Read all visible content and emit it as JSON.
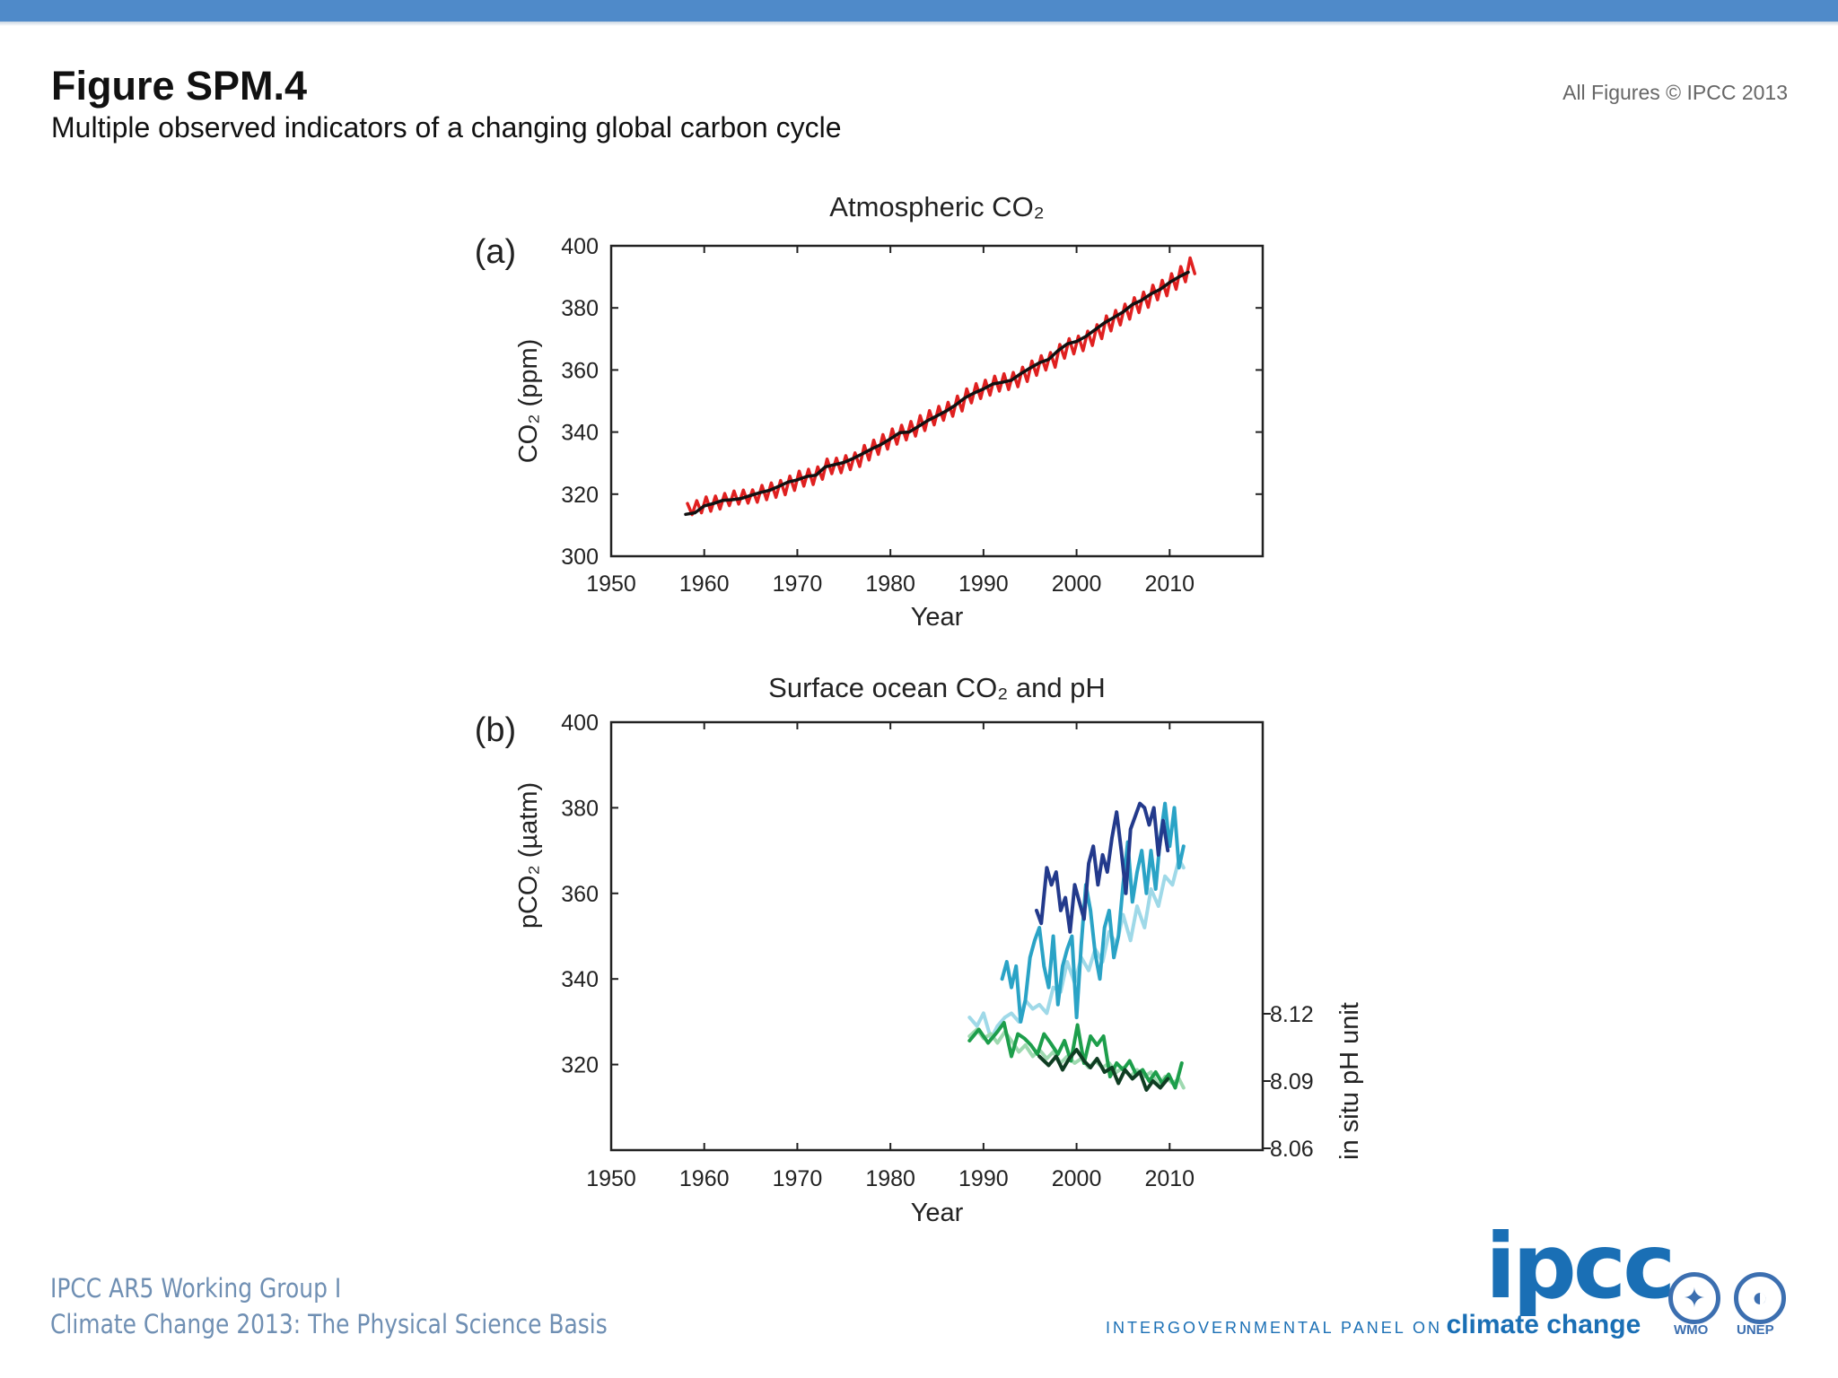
{
  "header": {
    "figure_title": "Figure SPM.4",
    "subtitle": "Multiple observed indicators of a changing global carbon cycle",
    "copyright": "All Figures © IPCC 2013"
  },
  "footer": {
    "line1": "IPCC AR5 Working Group I",
    "line2": "Climate Change 2013:  The Physical Science Basis",
    "ipcc_logo": "ipcc",
    "ipcc_tagline_small": "INTERGOVERNMENTAL PANEL ON",
    "ipcc_tagline_big": "climate change",
    "org1_label": "WMO",
    "org2_label": "UNEP",
    "org1_icon": "wmo-emblem-icon",
    "org2_icon": "unep-emblem-icon"
  },
  "chart_data": [
    {
      "panel": "(a)",
      "type": "line",
      "title": "Atmospheric CO₂",
      "xlabel": "Year",
      "ylabel": "CO₂ (ppm)",
      "xlim": [
        1950,
        2020
      ],
      "ylim": [
        300,
        400
      ],
      "xticks": [
        1950,
        1960,
        1970,
        1980,
        1990,
        2000,
        2010
      ],
      "yticks": [
        300,
        320,
        340,
        360,
        380,
        400
      ],
      "series": [
        {
          "color": "#e02020",
          "x": [
            1958.2,
            1958.7,
            1959.2,
            1959.7,
            1960.2,
            1960.7,
            1961.2,
            1961.7,
            1962.2,
            1962.7,
            1963.2,
            1963.7,
            1964.2,
            1964.7,
            1965.2,
            1965.7,
            1966.2,
            1966.7,
            1967.2,
            1967.7,
            1968.2,
            1968.7,
            1969.2,
            1969.7,
            1970.2,
            1970.7,
            1971.2,
            1971.7,
            1972.2,
            1972.7,
            1973.2,
            1973.7,
            1974.2,
            1974.7,
            1975.2,
            1975.7,
            1976.2,
            1976.7,
            1977.2,
            1977.7,
            1978.2,
            1978.7,
            1979.2,
            1979.7,
            1980.2,
            1980.7,
            1981.2,
            1981.7,
            1982.2,
            1982.7,
            1983.2,
            1983.7,
            1984.2,
            1984.7,
            1985.2,
            1985.7,
            1986.2,
            1986.7,
            1987.2,
            1987.7,
            1988.2,
            1988.7,
            1989.2,
            1989.7,
            1990.2,
            1990.7,
            1991.2,
            1991.7,
            1992.2,
            1992.7,
            1993.2,
            1993.7,
            1994.2,
            1994.7,
            1995.2,
            1995.7,
            1996.2,
            1996.7,
            1997.2,
            1997.7,
            1998.2,
            1998.7,
            1999.2,
            1999.7,
            2000.2,
            2000.7,
            2001.2,
            2001.7,
            2002.2,
            2002.7,
            2003.2,
            2003.7,
            2004.2,
            2004.7,
            2005.2,
            2005.7,
            2006.2,
            2006.7,
            2007.2,
            2007.7,
            2008.2,
            2008.7,
            2009.2,
            2009.7,
            2010.2,
            2010.7,
            2011.2,
            2011.7,
            2012.2,
            2012.7
          ],
          "y": [
            317.0,
            313.4,
            317.9,
            314.0,
            319.1,
            314.5,
            319.4,
            315.2,
            320.2,
            316.3,
            321.0,
            316.8,
            321.3,
            317.1,
            321.4,
            317.4,
            322.8,
            318.2,
            323.6,
            319.0,
            324.4,
            319.8,
            325.8,
            321.2,
            327.4,
            322.6,
            328.0,
            323.1,
            328.8,
            324.8,
            331.3,
            326.6,
            331.6,
            326.9,
            332.4,
            327.9,
            333.3,
            328.9,
            335.7,
            331.0,
            337.4,
            332.8,
            339.2,
            334.5,
            341.0,
            336.1,
            342.2,
            337.5,
            343.4,
            338.7,
            345.3,
            340.5,
            346.9,
            342.3,
            348.3,
            343.8,
            349.6,
            345.1,
            351.6,
            346.8,
            353.9,
            349.4,
            355.6,
            350.8,
            356.7,
            351.9,
            358.0,
            353.2,
            358.8,
            353.7,
            359.2,
            354.6,
            360.9,
            356.3,
            362.9,
            358.3,
            364.6,
            360.0,
            365.6,
            360.9,
            368.2,
            363.8,
            370.1,
            365.2,
            370.9,
            366.2,
            372.5,
            367.9,
            374.6,
            370.1,
            377.4,
            372.6,
            379.2,
            374.5,
            381.2,
            376.4,
            383.3,
            378.5,
            385.1,
            380.2,
            387.3,
            382.6,
            388.9,
            383.9,
            391.0,
            386.0,
            393.3,
            388.4,
            396.1,
            391.0
          ]
        },
        {
          "color": "#111111",
          "x": [
            1958,
            1959,
            1960,
            1961,
            1962,
            1963,
            1964,
            1965,
            1966,
            1967,
            1968,
            1969,
            1970,
            1971,
            1972,
            1973,
            1974,
            1975,
            1976,
            1977,
            1978,
            1979,
            1980,
            1981,
            1982,
            1983,
            1984,
            1985,
            1986,
            1987,
            1988,
            1989,
            1990,
            1991,
            1992,
            1993,
            1994,
            1995,
            1996,
            1997,
            1998,
            1999,
            2000,
            2001,
            2002,
            2003,
            2004,
            2005,
            2006,
            2007,
            2008,
            2009,
            2010,
            2011,
            2012
          ],
          "y": [
            313.5,
            314.0,
            316.2,
            317.0,
            318.0,
            318.2,
            318.6,
            319.6,
            320.5,
            321.2,
            322.5,
            323.9,
            324.6,
            325.7,
            326.1,
            328.8,
            329.5,
            330.2,
            331.5,
            333.0,
            334.6,
            336.0,
            337.8,
            339.8,
            340.0,
            341.8,
            343.7,
            345.2,
            346.8,
            348.7,
            351.0,
            352.6,
            353.9,
            355.5,
            356.0,
            356.7,
            358.8,
            360.6,
            362.3,
            363.4,
            366.2,
            368.4,
            369.2,
            370.8,
            373.0,
            375.2,
            376.9,
            378.7,
            381.1,
            382.5,
            384.5,
            386.0,
            388.2,
            390.0,
            391.5
          ]
        }
      ]
    },
    {
      "panel": "(b)",
      "type": "line",
      "title": "Surface ocean CO₂ and pH",
      "xlabel": "Year",
      "ylabel": "pCO₂ (µatm)",
      "y2label": "in situ pH unit",
      "xlim": [
        1950,
        2020
      ],
      "ylim": [
        300,
        400
      ],
      "xticks": [
        1950,
        1960,
        1970,
        1980,
        1990,
        2000,
        2010
      ],
      "yticks": [
        320,
        340,
        360,
        380,
        400
      ],
      "y2lim": [
        8.06,
        8.12
      ],
      "y2ticks": [
        8.06,
        8.09,
        8.12
      ],
      "series": [
        {
          "axis": "left",
          "color": "#9fd9e8",
          "x": [
            1988.5,
            1989.3,
            1990.0,
            1990.8,
            1991.5,
            1992.3,
            1993.0,
            1993.8,
            1994.5,
            1995.3,
            1996.0,
            1996.8,
            1997.5,
            1998.3,
            1999.0,
            1999.8,
            2000.5,
            2001.3,
            2002.0,
            2002.8,
            2003.5,
            2004.3,
            2005.0,
            2005.8,
            2006.5,
            2007.3,
            2008.0,
            2008.8,
            2009.5,
            2010.3,
            2011.0,
            2011.5
          ],
          "y": [
            331,
            329,
            332,
            326,
            329,
            331,
            332,
            330,
            335,
            333,
            334,
            332,
            338,
            337,
            344,
            339,
            345,
            342,
            347,
            344,
            351,
            348,
            355,
            349,
            357,
            352,
            361,
            357,
            364,
            362,
            368,
            366
          ]
        },
        {
          "axis": "left",
          "color": "#2aa3c6",
          "x": [
            1992.0,
            1992.5,
            1993.0,
            1993.5,
            1994.0,
            1994.5,
            1995.0,
            1995.5,
            1996.0,
            1996.5,
            1997.0,
            1997.5,
            1998.0,
            1998.5,
            1999.0,
            1999.5,
            2000.0,
            2000.5,
            2001.0,
            2001.5,
            2002.0,
            2002.5,
            2003.0,
            2003.5,
            2004.0,
            2004.5,
            2005.0,
            2005.5,
            2006.0,
            2006.5,
            2007.0,
            2007.5,
            2008.0,
            2008.5,
            2009.0,
            2009.5,
            2010.0,
            2010.5,
            2011.0,
            2011.5
          ],
          "y": [
            340,
            344,
            338,
            343,
            330,
            335,
            345,
            349,
            352,
            343,
            338,
            350,
            334,
            343,
            347,
            350,
            331,
            348,
            362,
            356,
            346,
            340,
            352,
            356,
            345,
            350,
            362,
            372,
            358,
            365,
            370,
            360,
            370,
            361,
            373,
            381,
            371,
            380,
            366,
            371
          ]
        },
        {
          "axis": "left",
          "color": "#233a8c",
          "x": [
            1995.7,
            1996.2,
            1996.8,
            1997.3,
            1997.8,
            1998.3,
            1998.8,
            1999.3,
            1999.8,
            2000.3,
            2000.8,
            2001.3,
            2001.8,
            2002.3,
            2002.8,
            2003.3,
            2003.8,
            2004.3,
            2004.8,
            2005.3,
            2005.8,
            2006.3,
            2006.8,
            2007.3,
            2007.8,
            2008.3,
            2008.8,
            2009.3,
            2009.8
          ],
          "y": [
            356,
            353,
            366,
            362,
            365,
            356,
            359,
            351,
            362,
            358,
            354,
            367,
            371,
            362,
            369,
            365,
            373,
            379,
            370,
            360,
            375,
            378,
            381,
            380,
            376,
            380,
            369,
            377,
            370
          ]
        },
        {
          "axis": "right",
          "color": "#9ed9b0",
          "x": [
            1988.5,
            1989.3,
            1990.0,
            1990.8,
            1991.5,
            1992.3,
            1993.0,
            1993.8,
            1994.5,
            1995.3,
            1996.0,
            1996.8,
            1997.5,
            1998.3,
            1999.0,
            1999.8,
            2000.5,
            2001.3,
            2002.0,
            2002.8,
            2003.5,
            2004.3,
            2005.0,
            2005.8,
            2006.5,
            2007.3,
            2008.0,
            2008.8,
            2009.5,
            2010.3,
            2011.0,
            2011.5
          ],
          "y": [
            8.11,
            8.113,
            8.109,
            8.111,
            8.107,
            8.112,
            8.108,
            8.103,
            8.106,
            8.101,
            8.104,
            8.1,
            8.103,
            8.098,
            8.101,
            8.098,
            8.1,
            8.096,
            8.099,
            8.096,
            8.098,
            8.094,
            8.096,
            8.092,
            8.095,
            8.092,
            8.094,
            8.088,
            8.092,
            8.089,
            8.091,
            8.087
          ]
        },
        {
          "axis": "right",
          "color": "#1d9e4b",
          "x": [
            1988.5,
            1989.5,
            1990.5,
            1991.5,
            1992.2,
            1993.0,
            1993.7,
            1994.4,
            1995.1,
            1995.8,
            1996.5,
            1997.2,
            1998.0,
            1998.7,
            1999.4,
            2000.1,
            2000.8,
            2001.5,
            2002.2,
            2002.9,
            2003.6,
            2004.3,
            2005.0,
            2005.7,
            2006.4,
            2007.1,
            2007.8,
            2008.5,
            2009.2,
            2009.9,
            2010.6,
            2011.3
          ],
          "y": [
            8.108,
            8.113,
            8.107,
            8.112,
            8.116,
            8.101,
            8.111,
            8.109,
            8.106,
            8.102,
            8.111,
            8.107,
            8.102,
            8.108,
            8.099,
            8.115,
            8.098,
            8.11,
            8.106,
            8.11,
            8.092,
            8.098,
            8.095,
            8.099,
            8.093,
            8.095,
            8.09,
            8.094,
            8.089,
            8.093,
            8.087,
            8.098
          ]
        },
        {
          "axis": "right",
          "color": "#0f3d22",
          "x": [
            1996.0,
            1997.0,
            1997.8,
            1998.5,
            1999.2,
            2000.0,
            2000.8,
            2001.5,
            2002.2,
            2003.0,
            2003.8,
            2004.5,
            2005.2,
            2006.0,
            2006.8,
            2007.5,
            2008.2,
            2009.0,
            2009.8
          ],
          "y": [
            8.101,
            8.097,
            8.101,
            8.095,
            8.1,
            8.104,
            8.099,
            8.096,
            8.1,
            8.094,
            8.096,
            8.089,
            8.095,
            8.091,
            8.094,
            8.086,
            8.09,
            8.087,
            8.091
          ]
        }
      ]
    }
  ]
}
